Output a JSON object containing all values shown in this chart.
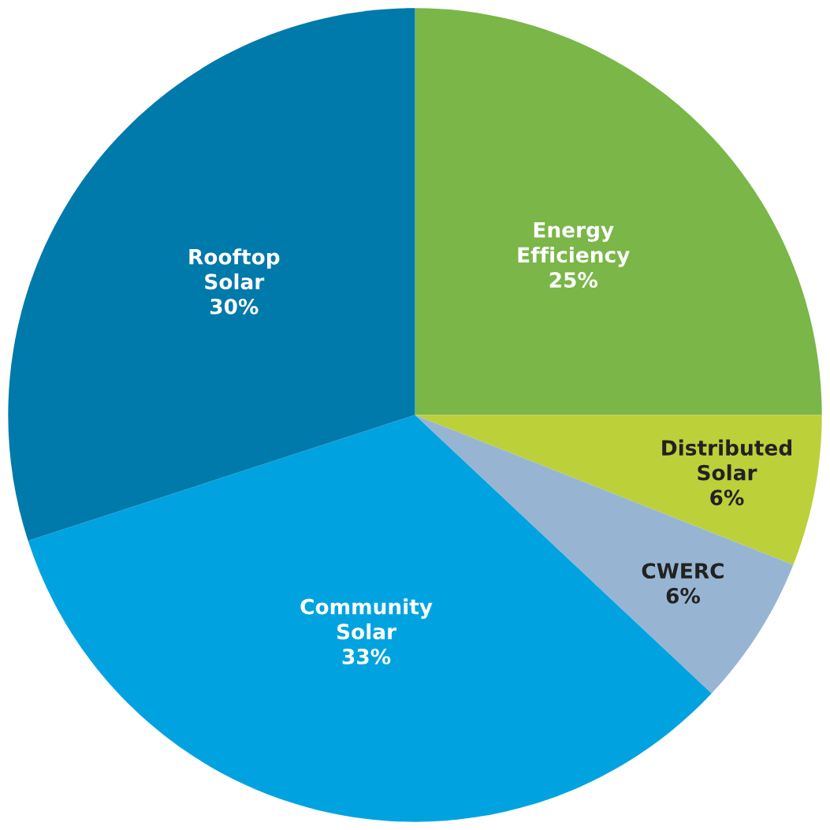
{
  "chart_data": {
    "type": "pie",
    "categories": [
      "Energy Efficiency",
      "Distributed Solar",
      "CWERC",
      "Community Solar",
      "Rooftop Solar"
    ],
    "values": [
      25,
      6,
      6,
      33,
      30
    ],
    "colors": [
      "#7ab648",
      "#bcd03a",
      "#97b5d3",
      "#00a3e0",
      "#0079ab"
    ],
    "value_labels": [
      "25%",
      "6%",
      "6%",
      "33%",
      "30%"
    ],
    "legend": false
  }
}
